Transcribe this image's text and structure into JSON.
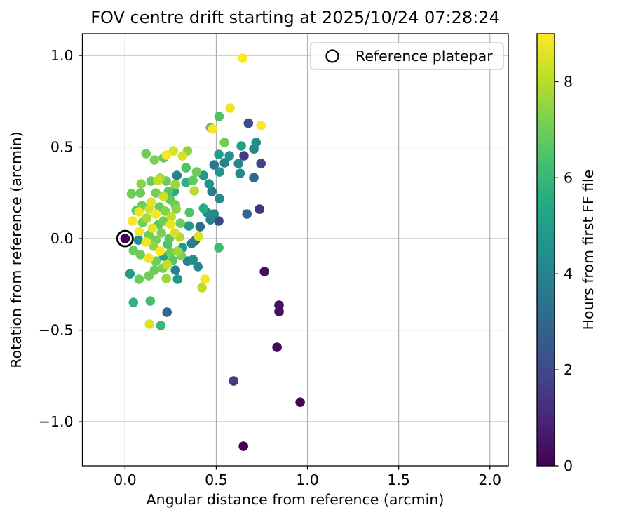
{
  "chart_data": {
    "type": "scatter",
    "title": "FOV centre drift starting at 2025/10/24 07:28:24",
    "xlabel": "Angular distance from reference (arcmin)",
    "ylabel": "Rotation from reference (arcmin)",
    "xlim": [
      -0.234,
      2.101
    ],
    "ylim": [
      -1.241,
      1.119
    ],
    "xticks": [
      0.0,
      0.5,
      1.0,
      1.5,
      2.0
    ],
    "yticks": [
      -1.0,
      -0.5,
      0.0,
      0.5,
      1.0
    ],
    "grid": true,
    "legend": {
      "label": "Reference platepar",
      "position": "upper right",
      "marker": "open-circle"
    },
    "colorbar": {
      "label": "Hours from first FF file",
      "vmin": 0,
      "vmax": 9,
      "ticks": [
        0,
        2,
        4,
        6,
        8
      ],
      "colormap": "viridis"
    },
    "reference_point": {
      "x": 0.0,
      "y": 0.0
    },
    "points_format": [
      "angular_distance_arcmin",
      "rotation_arcmin",
      "hours_from_first_ff"
    ],
    "points": [
      [
        0.0,
        0.0,
        0.0
      ],
      [
        0.649,
        -1.134,
        0.0
      ],
      [
        0.96,
        -0.893,
        0.1
      ],
      [
        0.595,
        -0.778,
        1.7
      ],
      [
        0.833,
        -0.594,
        0.2
      ],
      [
        0.844,
        -0.364,
        0.4
      ],
      [
        0.844,
        -0.398,
        0.4
      ],
      [
        0.764,
        -0.18,
        0.3
      ],
      [
        0.737,
        0.161,
        1.3
      ],
      [
        0.668,
        0.134,
        2.9
      ],
      [
        0.745,
        0.41,
        1.9
      ],
      [
        0.652,
        0.452,
        1.6
      ],
      [
        0.676,
        0.63,
        2.1
      ],
      [
        0.514,
        0.096,
        1.9
      ],
      [
        0.718,
        0.525,
        4.4
      ],
      [
        0.706,
        0.49,
        4.2
      ],
      [
        0.706,
        0.333,
        3.0
      ],
      [
        0.637,
        0.506,
        5.2
      ],
      [
        0.622,
        0.41,
        4.1
      ],
      [
        0.63,
        0.356,
        4.3
      ],
      [
        0.572,
        0.452,
        4.5
      ],
      [
        0.545,
        0.414,
        3.9
      ],
      [
        0.514,
        0.46,
        5.1
      ],
      [
        0.488,
        0.402,
        3.6
      ],
      [
        0.518,
        0.364,
        4.6
      ],
      [
        0.518,
        0.218,
        4.3
      ],
      [
        0.461,
        0.299,
        4.6
      ],
      [
        0.476,
        0.257,
        3.8
      ],
      [
        0.43,
        0.345,
        4.7
      ],
      [
        0.449,
        0.142,
        4.4
      ],
      [
        0.488,
        0.134,
        4.2
      ],
      [
        0.468,
        0.103,
        4.0
      ],
      [
        0.411,
        0.065,
        3.2
      ],
      [
        0.399,
        -0.153,
        4.1
      ],
      [
        0.365,
        -0.027,
        3.9
      ],
      [
        0.384,
        -0.011,
        2.9
      ],
      [
        0.23,
        -0.402,
        3.0
      ],
      [
        0.276,
        -0.172,
        3.9
      ],
      [
        0.288,
        -0.222,
        4.6
      ],
      [
        0.342,
        -0.123,
        4.0
      ],
      [
        0.372,
        -0.115,
        4.4
      ],
      [
        0.284,
        0.345,
        4.0
      ],
      [
        0.269,
        0.257,
        5.5
      ],
      [
        0.027,
        -0.192,
        5.0
      ],
      [
        0.073,
        -0.008,
        4.5
      ],
      [
        0.35,
        0.069,
        4.9
      ],
      [
        0.211,
        -0.096,
        5.2
      ],
      [
        0.315,
        -0.05,
        4.9
      ],
      [
        0.645,
        0.985,
        9.0
      ],
      [
        0.576,
        0.713,
        8.8
      ],
      [
        0.515,
        0.667,
        6.5
      ],
      [
        0.468,
        0.606,
        6.8
      ],
      [
        0.48,
        0.598,
        8.9
      ],
      [
        0.745,
        0.617,
        9.0
      ],
      [
        0.545,
        0.525,
        7.0
      ],
      [
        0.342,
        0.479,
        7.5
      ],
      [
        0.315,
        0.452,
        8.5
      ],
      [
        0.334,
        0.387,
        6.5
      ],
      [
        0.392,
        0.364,
        7.0
      ],
      [
        0.372,
        0.318,
        6.8
      ],
      [
        0.334,
        0.307,
        5.8
      ],
      [
        0.38,
        0.261,
        8.0
      ],
      [
        0.353,
        0.142,
        6.5
      ],
      [
        0.43,
        0.165,
        5.5
      ],
      [
        0.115,
        0.464,
        7.0
      ],
      [
        0.161,
        0.429,
        7.2
      ],
      [
        0.265,
        0.479,
        8.5
      ],
      [
        0.226,
        0.456,
        8.9
      ],
      [
        0.211,
        0.441,
        6.8
      ],
      [
        0.142,
        0.314,
        6.9
      ],
      [
        0.18,
        0.318,
        8.2
      ],
      [
        0.226,
        0.314,
        6.9
      ],
      [
        0.276,
        0.295,
        7.6
      ],
      [
        0.035,
        0.245,
        7.0
      ],
      [
        0.084,
        0.249,
        6.9
      ],
      [
        0.169,
        0.249,
        7.1
      ],
      [
        0.211,
        0.23,
        8.3
      ],
      [
        0.249,
        0.211,
        6.8
      ],
      [
        0.092,
        0.18,
        7.0
      ],
      [
        0.077,
        0.146,
        8.8
      ],
      [
        0.134,
        0.161,
        8.4
      ],
      [
        0.188,
        0.172,
        6.9
      ],
      [
        0.168,
        0.134,
        8.9
      ],
      [
        0.276,
        0.184,
        7.0
      ],
      [
        0.04,
        0.096,
        8.9
      ],
      [
        0.096,
        0.088,
        7.0
      ],
      [
        0.15,
        0.057,
        8.6
      ],
      [
        0.211,
        0.096,
        7.0
      ],
      [
        0.249,
        0.077,
        8.8
      ],
      [
        0.303,
        0.084,
        6.9
      ],
      [
        0.077,
        0.038,
        8.9
      ],
      [
        0.13,
        0.019,
        7.0
      ],
      [
        0.115,
        -0.019,
        8.8
      ],
      [
        0.169,
        -0.008,
        7.1
      ],
      [
        0.192,
        -0.069,
        9.0
      ],
      [
        0.046,
        -0.065,
        6.9
      ],
      [
        0.084,
        -0.088,
        7.0
      ],
      [
        0.13,
        -0.107,
        8.8
      ],
      [
        0.169,
        -0.123,
        7.0
      ],
      [
        0.249,
        -0.077,
        7.0
      ],
      [
        0.288,
        -0.069,
        7.7
      ],
      [
        0.077,
        -0.222,
        6.9
      ],
      [
        0.13,
        -0.203,
        7.0
      ],
      [
        0.161,
        -0.172,
        7.0
      ],
      [
        0.207,
        -0.161,
        7.1
      ],
      [
        0.23,
        -0.142,
        8.2
      ],
      [
        0.226,
        -0.218,
        7.6
      ],
      [
        0.403,
        0.011,
        8.4
      ],
      [
        0.514,
        -0.05,
        6.2
      ],
      [
        0.438,
        -0.222,
        8.9
      ],
      [
        0.422,
        -0.268,
        8.0
      ],
      [
        0.046,
        -0.349,
        5.8
      ],
      [
        0.138,
        -0.341,
        6.3
      ],
      [
        0.134,
        -0.467,
        8.5
      ],
      [
        0.196,
        -0.475,
        6.0
      ],
      [
        0.22,
        0.15,
        7.3
      ],
      [
        0.253,
        0.119,
        8.1
      ],
      [
        0.184,
        0.077,
        6.6
      ],
      [
        0.119,
        0.111,
        7.8
      ],
      [
        0.199,
        0.031,
        7.2
      ],
      [
        0.242,
        0.0,
        6.7
      ],
      [
        0.272,
        0.031,
        8.4
      ],
      [
        0.157,
        -0.042,
        7.5
      ],
      [
        0.234,
        -0.031,
        6.4
      ],
      [
        0.299,
        0.008,
        7.9
      ],
      [
        0.261,
        -0.119,
        6.6
      ],
      [
        0.307,
        -0.092,
        7.2
      ],
      [
        0.088,
        0.299,
        7.4
      ],
      [
        0.061,
        0.153,
        6.8
      ],
      [
        0.142,
        0.199,
        8.6
      ],
      [
        0.192,
        0.33,
        7.7
      ],
      [
        0.238,
        0.257,
        6.6
      ],
      [
        0.28,
        0.161,
        7.4
      ]
    ]
  },
  "colors": {
    "background": "#ffffff",
    "grid": "#b0b0b0",
    "spine": "#000000",
    "text": "#000000",
    "legend_border": "#cccccc",
    "viridis_anchors": [
      [
        0.0,
        "#440154"
      ],
      [
        0.1,
        "#482475"
      ],
      [
        0.2,
        "#414487"
      ],
      [
        0.3,
        "#355f8d"
      ],
      [
        0.4,
        "#2a788e"
      ],
      [
        0.5,
        "#21918c"
      ],
      [
        0.6,
        "#22a884"
      ],
      [
        0.7,
        "#44bf70"
      ],
      [
        0.8,
        "#7ad151"
      ],
      [
        0.9,
        "#bddf26"
      ],
      [
        1.0,
        "#fde725"
      ]
    ]
  }
}
